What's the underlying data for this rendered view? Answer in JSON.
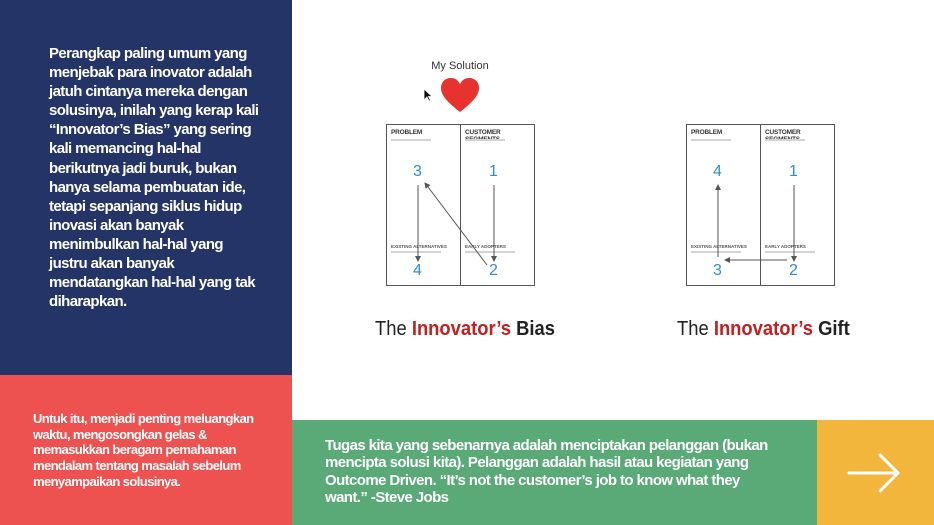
{
  "left_panel": {
    "intro": "Perangkap paling umum yang menjebak para inovator adalah jatuh cintanya mereka dengan solusinya, inilah yang kerap kali “Innovator’s Bias” yang sering kali memancing hal-hal berikutnya jadi buruk, bukan hanya selama pembuatan ide, tetapi sepanjang siklus hidup inovasi akan banyak menimbulkan hal-hal yang justru akan banyak mendatangkan hal-hal yang tak diharapkan.",
    "action": "Untuk itu, menjadi penting meluangkan waktu, mengosongkan gelas & memasukkan beragam pemahaman mendalam tentang masalah sebelum menyampaikan solusinya."
  },
  "solution_label": "My Solution",
  "diagrams": {
    "bias": {
      "problem": "PROBLEM",
      "segments": "CUSTOMER SEGMENTS",
      "alternatives": "EXISTING ALTERNATIVES",
      "adopters": "EARLY ADOPTERS",
      "n_tl": "3",
      "n_tr": "1",
      "n_bl": "4",
      "n_br": "2",
      "caption_the": "The ",
      "caption_accent": "Innovator’s",
      "caption_end": " Bias"
    },
    "gift": {
      "problem": "PROBLEM",
      "segments": "CUSTOMER SEGMENTS",
      "alternatives": "EXISTING ALTERNATIVES",
      "adopters": "EARLY ADOPTERS",
      "n_tl": "4",
      "n_tr": "1",
      "n_bl": "3",
      "n_br": "2",
      "caption_the": "The ",
      "caption_accent": "Innovator’s",
      "caption_end": " Gift"
    }
  },
  "quote": "Tugas kita yang sebenarnya adalah menciptakan pelanggan (bukan mencipta solusi kita). Pelanggan adalah hasil atau kegiatan yang Outcome Driven. “It’s not the customer’s job to know what they want.” -Steve Jobs",
  "colors": {
    "navy": "#243466",
    "coral": "#ee5250",
    "green": "#5aaa78",
    "yellow": "#f3b63c",
    "heart": "#e8322f",
    "accent_red": "#c41e1e",
    "number_blue": "#2a8fd6"
  },
  "icons": {
    "next": "arrow-right-icon",
    "heart": "heart-icon",
    "cursor": "mouse-cursor-icon"
  }
}
